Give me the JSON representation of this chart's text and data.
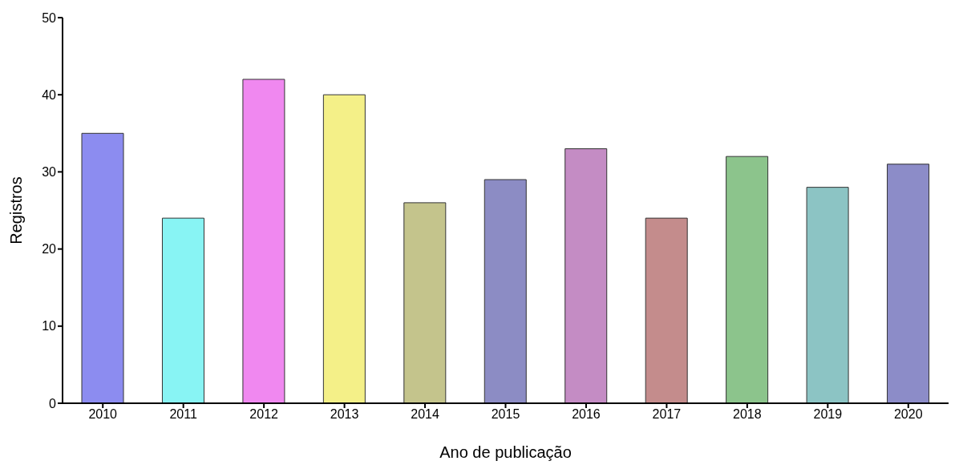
{
  "chart_data": {
    "type": "bar",
    "xlabel": "Ano de publicação",
    "ylabel": "Registros",
    "categories": [
      "2010",
      "2011",
      "2012",
      "2013",
      "2014",
      "2015",
      "2016",
      "2017",
      "2018",
      "2019",
      "2020"
    ],
    "values": [
      35,
      24,
      42,
      40,
      26,
      29,
      33,
      24,
      32,
      28,
      31
    ],
    "colors": [
      "#8c8cf0",
      "#88f4f4",
      "#f088f0",
      "#f4f088",
      "#c4c48c",
      "#8c8cc4",
      "#c48cc4",
      "#c48c8c",
      "#8cc48c",
      "#8cc4c4",
      "#8c8cc8"
    ],
    "ylim": [
      0,
      50
    ],
    "yticks": [
      0,
      10,
      20,
      30,
      40,
      50
    ],
    "grid": false,
    "legend": false
  }
}
